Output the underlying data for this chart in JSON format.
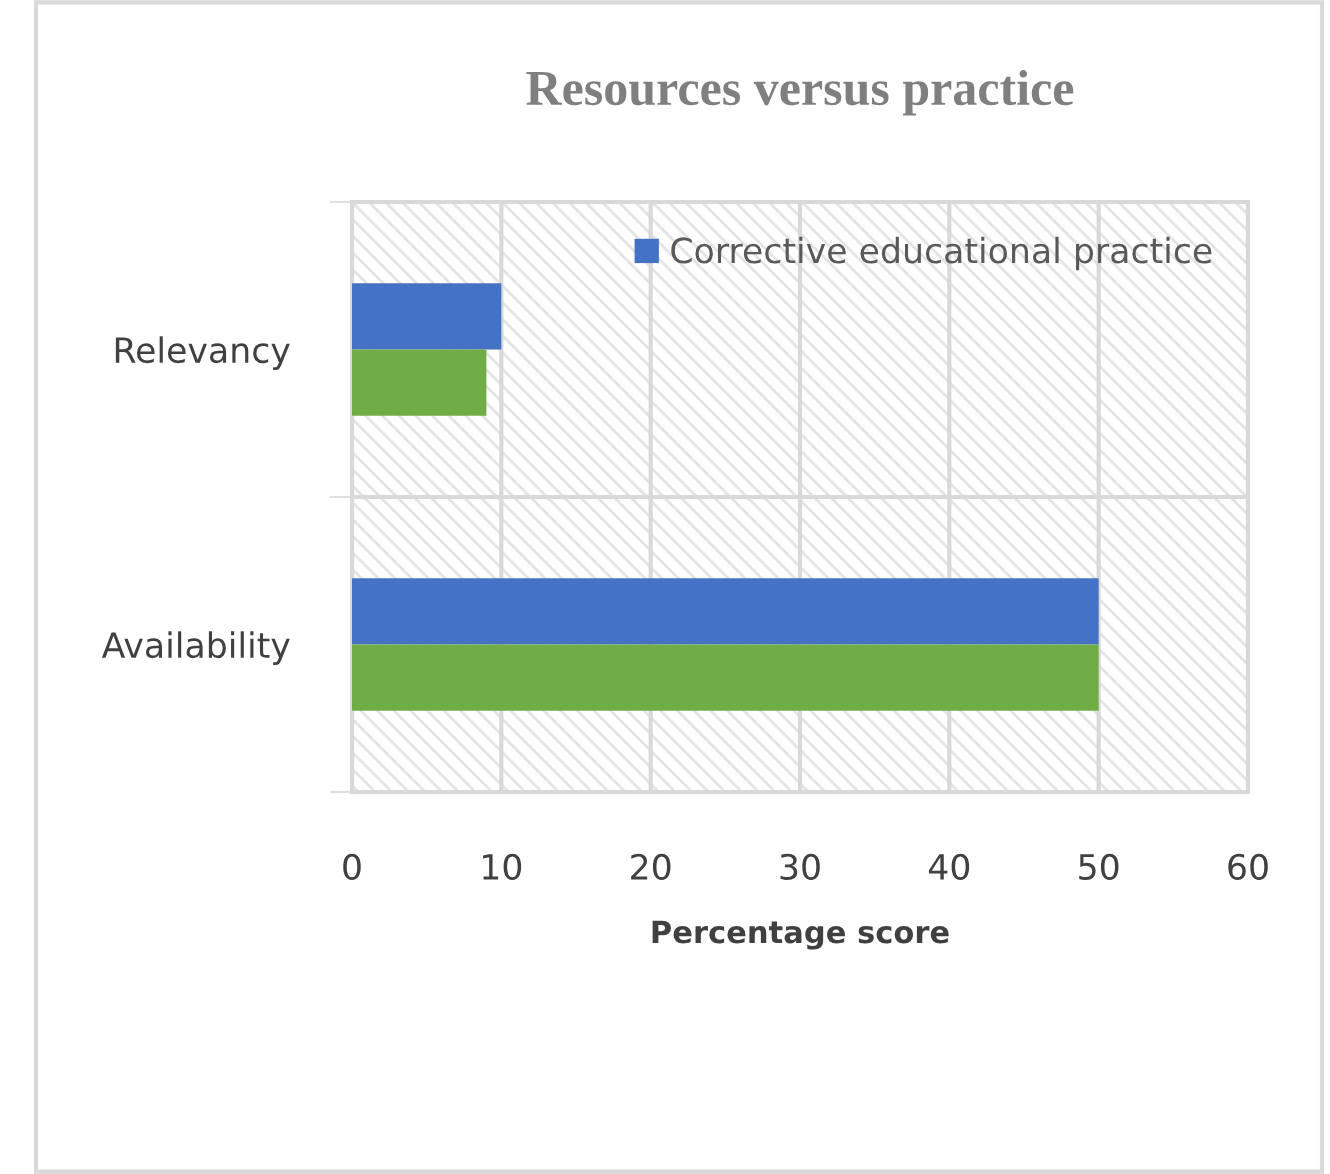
{
  "chart_data": {
    "type": "bar",
    "orientation": "horizontal",
    "title": "Resources versus practice",
    "xlabel": "Percentage score",
    "categories": [
      "Relevancy",
      "Availability"
    ],
    "series": [
      {
        "name": "Corrective educational practice",
        "color": "#4472c4",
        "values": [
          10,
          50
        ]
      },
      {
        "color": "#70ad47",
        "values": [
          9,
          50
        ]
      }
    ],
    "xlim": [
      0,
      60
    ],
    "xticks": [
      0,
      10,
      20,
      30,
      40,
      50,
      60
    ],
    "grid": true,
    "legend": "top right"
  }
}
